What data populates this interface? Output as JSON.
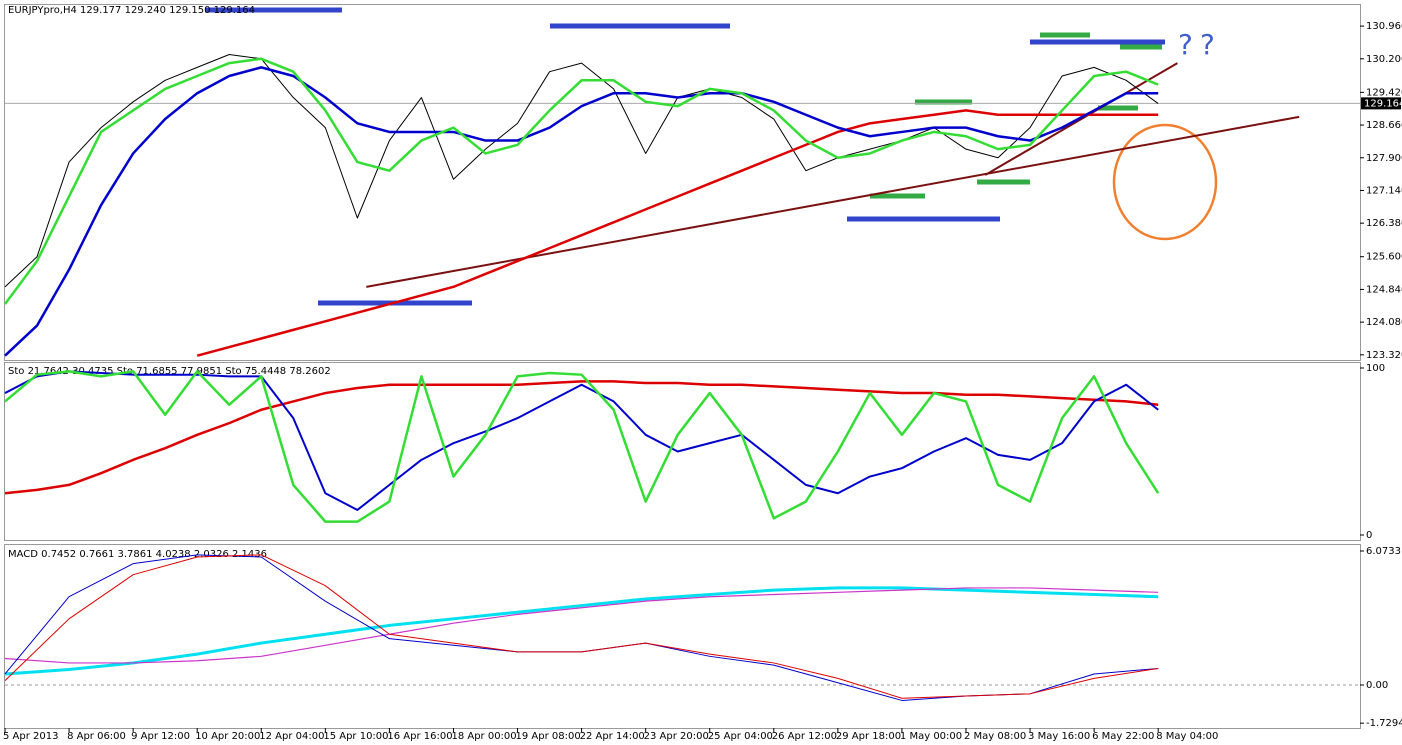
{
  "chart_data": [
    {
      "type": "line",
      "title": "EURJPYpro,H4  129.177 129.240 129.150 129.164",
      "xlim": [
        0,
        21.15
      ],
      "ylim": [
        123.2,
        131.45
      ],
      "yticks": [
        {
          "value": 123.32,
          "label": "123.320"
        },
        {
          "value": 124.08,
          "label": "124.080"
        },
        {
          "value": 124.84,
          "label": "124.840"
        },
        {
          "value": 125.6,
          "label": "125.600"
        },
        {
          "value": 126.38,
          "label": "126.380"
        },
        {
          "value": 127.14,
          "label": "127.140"
        },
        {
          "value": 127.9,
          "label": "127.900"
        },
        {
          "value": 128.66,
          "label": "128.660"
        },
        {
          "value": 129.42,
          "label": "129.420"
        },
        {
          "value": 130.2,
          "label": "130.200"
        },
        {
          "value": 130.96,
          "label": "130.960"
        }
      ],
      "last_price": 129.164,
      "annotations": [
        "?",
        "?"
      ],
      "x": [
        0,
        0.5,
        1,
        1.5,
        2,
        2.5,
        3,
        3.5,
        4,
        4.5,
        5,
        5.5,
        6,
        6.5,
        7,
        7.5,
        8,
        8.5,
        9,
        9.5,
        10,
        10.5,
        11,
        11.5,
        12,
        12.5,
        13,
        13.5,
        14,
        14.5,
        15,
        15.5,
        16,
        16.5,
        17,
        17.5,
        18
      ],
      "series": [
        {
          "color": "#000000",
          "width": 1,
          "values": [
            124.9,
            125.6,
            127.8,
            128.6,
            129.2,
            129.7,
            130.0,
            130.3,
            130.2,
            129.3,
            128.6,
            126.5,
            128.3,
            129.3,
            127.4,
            128.1,
            128.7,
            129.9,
            130.1,
            129.5,
            128.0,
            129.3,
            129.5,
            129.3,
            128.8,
            127.6,
            127.9,
            128.1,
            128.3,
            128.6,
            128.1,
            127.9,
            128.6,
            129.8,
            130.0,
            129.7,
            129.16
          ]
        },
        {
          "color": "#dd0000",
          "width": 2.5,
          "values": [
            null,
            null,
            null,
            null,
            null,
            null,
            123.3,
            123.5,
            123.7,
            123.9,
            124.1,
            124.3,
            124.5,
            124.7,
            124.9,
            125.2,
            125.5,
            125.8,
            126.1,
            126.4,
            126.7,
            127.0,
            127.3,
            127.6,
            127.9,
            128.2,
            128.5,
            128.7,
            128.8,
            128.9,
            129.0,
            128.9,
            128.9,
            128.9,
            128.9,
            128.9,
            128.9
          ]
        },
        {
          "color": "#0000cc",
          "width": 2.5,
          "values": [
            123.3,
            124.0,
            125.3,
            126.8,
            128.0,
            128.8,
            129.4,
            129.8,
            130.0,
            129.8,
            129.3,
            128.7,
            128.5,
            128.5,
            128.5,
            128.3,
            128.3,
            128.6,
            129.1,
            129.4,
            129.4,
            129.3,
            129.4,
            129.4,
            129.2,
            128.9,
            128.6,
            128.4,
            128.5,
            128.6,
            128.6,
            128.4,
            128.3,
            128.6,
            129.0,
            129.4,
            129.4
          ]
        },
        {
          "color": "#33dd33",
          "width": 2.5,
          "values": [
            124.5,
            125.5,
            127.0,
            128.5,
            129.0,
            129.5,
            129.8,
            130.1,
            130.2,
            129.9,
            129.0,
            127.8,
            127.6,
            128.3,
            128.6,
            128.0,
            128.2,
            129.0,
            129.7,
            129.7,
            129.2,
            129.1,
            129.5,
            129.4,
            129.0,
            128.3,
            127.9,
            128.0,
            128.3,
            128.5,
            128.4,
            128.1,
            128.2,
            129.0,
            129.8,
            129.9,
            129.6
          ]
        }
      ],
      "trendlines": [
        {
          "color": "#7a1010",
          "x": [
            5.64,
            20.2
          ],
          "values": [
            124.9,
            128.85
          ]
        },
        {
          "color": "#7a1010",
          "x": [
            15.3,
            18.3
          ],
          "values": [
            127.5,
            130.1
          ]
        }
      ]
    },
    {
      "type": "line",
      "title": "Sto 21.7642 30.4735  Sto 71.6855 77.9851  Sto 75.4448 78.2602",
      "xlim": [
        0,
        21.15
      ],
      "ylim": [
        -3,
        103
      ],
      "yticks": [
        0,
        100
      ],
      "x": [
        0,
        0.5,
        1,
        1.5,
        2,
        2.5,
        3,
        3.5,
        4,
        4.5,
        5,
        5.5,
        6,
        6.5,
        7,
        7.5,
        8,
        8.5,
        9,
        9.5,
        10,
        10.5,
        11,
        11.5,
        12,
        12.5,
        13,
        13.5,
        14,
        14.5,
        15,
        15.5,
        16,
        16.5,
        17,
        17.5,
        18
      ],
      "series": [
        {
          "color": "#dd0000",
          "width": 2.5,
          "values": [
            25,
            27,
            30,
            37,
            45,
            52,
            60,
            67,
            75,
            80,
            85,
            88,
            90,
            90,
            90,
            90,
            90,
            91,
            92,
            92,
            91,
            91,
            90,
            90,
            89,
            88,
            87,
            86,
            85,
            85,
            84,
            84,
            83,
            82,
            81,
            80,
            78
          ]
        },
        {
          "color": "#0000cc",
          "width": 2,
          "values": [
            85,
            95,
            98,
            97,
            96,
            96,
            96,
            95,
            95,
            70,
            25,
            15,
            30,
            45,
            55,
            62,
            70,
            80,
            90,
            80,
            60,
            50,
            55,
            60,
            45,
            30,
            25,
            35,
            40,
            50,
            58,
            48,
            45,
            55,
            80,
            90,
            75
          ]
        },
        {
          "color": "#33dd33",
          "width": 2.5,
          "values": [
            80,
            96,
            98,
            95,
            98,
            72,
            98,
            78,
            95,
            30,
            8,
            8,
            20,
            95,
            35,
            60,
            95,
            97,
            96,
            75,
            20,
            60,
            85,
            60,
            10,
            20,
            50,
            85,
            60,
            85,
            80,
            30,
            20,
            70,
            95,
            55,
            25
          ]
        }
      ]
    },
    {
      "type": "line",
      "title": "MACD 0.7452 0.7661 3.7861 4.0238 2.0326 2.1436",
      "xlim": [
        0,
        21.15
      ],
      "ylim": [
        -1.949,
        6.345
      ],
      "yticks": [
        -1.7294,
        {
          "value": 0,
          "label": "0.00"
        },
        6.0733
      ],
      "xticks": [
        {
          "value": 0,
          "label": "5 Apr 2013"
        },
        {
          "value": 1,
          "label": "8 Apr 06:00"
        },
        {
          "value": 2,
          "label": "9 Apr 12:00"
        },
        {
          "value": 3,
          "label": "10 Apr 20:00"
        },
        {
          "value": 4,
          "label": "12 Apr 04:00"
        },
        {
          "value": 5,
          "label": "15 Apr 10:00"
        },
        {
          "value": 6,
          "label": "16 Apr 16:00"
        },
        {
          "value": 7,
          "label": "18 Apr 00:00"
        },
        {
          "value": 8,
          "label": "19 Apr 08:00"
        },
        {
          "value": 9,
          "label": "22 Apr 14:00"
        },
        {
          "value": 10,
          "label": "23 Apr 20:00"
        },
        {
          "value": 11,
          "label": "25 Apr 04:00"
        },
        {
          "value": 12,
          "label": "26 Apr 12:00"
        },
        {
          "value": 13,
          "label": "29 Apr 18:00"
        },
        {
          "value": 14,
          "label": "1 May 00:00"
        },
        {
          "value": 15,
          "label": "2 May 08:00"
        },
        {
          "value": 16,
          "label": "3 May 16:00"
        },
        {
          "value": 17,
          "label": "6 May 22:00"
        },
        {
          "value": 18,
          "label": "8 May 04:00"
        }
      ],
      "x": [
        0,
        1,
        2,
        3,
        4,
        5,
        6,
        7,
        8,
        9,
        10,
        11,
        12,
        13,
        14,
        15,
        16,
        17,
        18
      ],
      "series": [
        {
          "color": "#00e0f0",
          "width": 3,
          "values": [
            0.5,
            0.7,
            1.0,
            1.4,
            1.9,
            2.3,
            2.7,
            3.0,
            3.3,
            3.6,
            3.9,
            4.1,
            4.3,
            4.4,
            4.4,
            4.3,
            4.2,
            4.1,
            4.0
          ]
        },
        {
          "color": "#cc33cc",
          "width": 1.2,
          "values": [
            1.2,
            1.0,
            1.0,
            1.1,
            1.3,
            1.8,
            2.3,
            2.8,
            3.2,
            3.5,
            3.8,
            4.0,
            4.1,
            4.2,
            4.3,
            4.4,
            4.4,
            4.3,
            4.2
          ]
        },
        {
          "color": "#0000cc",
          "width": 1,
          "values": [
            0.5,
            4.0,
            5.5,
            5.9,
            5.8,
            3.8,
            2.1,
            1.8,
            1.5,
            1.5,
            1.9,
            1.3,
            0.9,
            0.1,
            -0.7,
            -0.5,
            -0.4,
            0.5,
            0.75
          ]
        },
        {
          "color": "#dd0000",
          "width": 1,
          "values": [
            0.2,
            3.0,
            5.0,
            5.8,
            5.9,
            4.5,
            2.3,
            1.9,
            1.5,
            1.5,
            1.9,
            1.4,
            1.0,
            0.3,
            -0.6,
            -0.5,
            -0.4,
            0.3,
            0.75
          ]
        }
      ]
    }
  ]
}
